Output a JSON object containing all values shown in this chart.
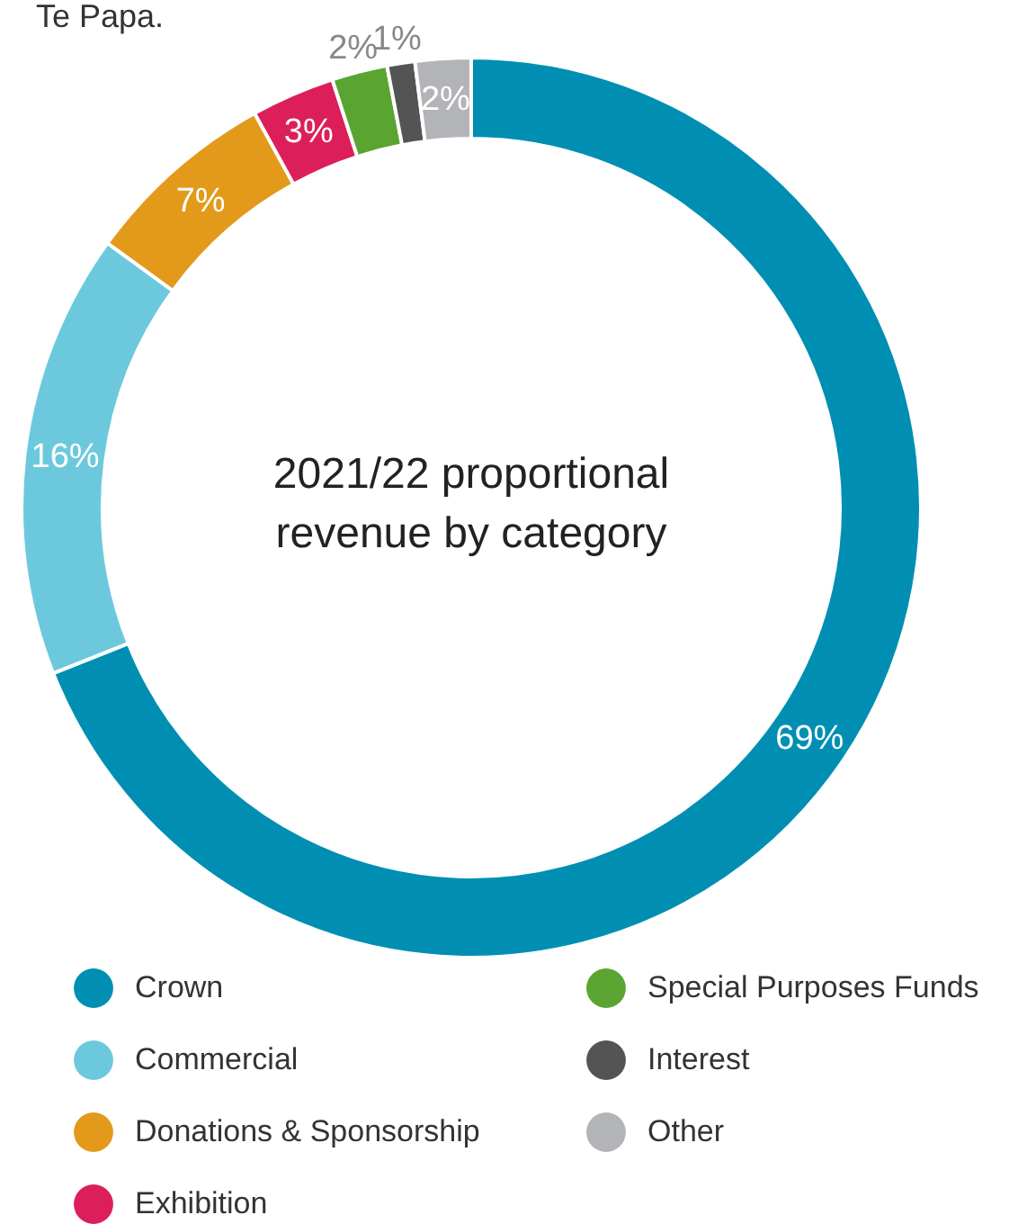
{
  "chart_data": {
    "type": "donut",
    "title": "2021/22 proportional revenue by category",
    "categories": [
      "Crown",
      "Commercial",
      "Donations & Sponsorship",
      "Exhibition",
      "Special Purposes Funds",
      "Interest",
      "Other"
    ],
    "values": [
      69,
      16,
      7,
      3,
      2,
      1,
      2
    ],
    "colors": [
      "#008fb3",
      "#6cc9dd",
      "#e39a1a",
      "#dc1f5a",
      "#5aa531",
      "#545454",
      "#b3b4b8"
    ],
    "value_labels": [
      "69%",
      "16%",
      "7%",
      "3%",
      "2%",
      "1%",
      "2%"
    ],
    "legend": "bottom",
    "annotations": [
      "Te Papa."
    ]
  }
}
